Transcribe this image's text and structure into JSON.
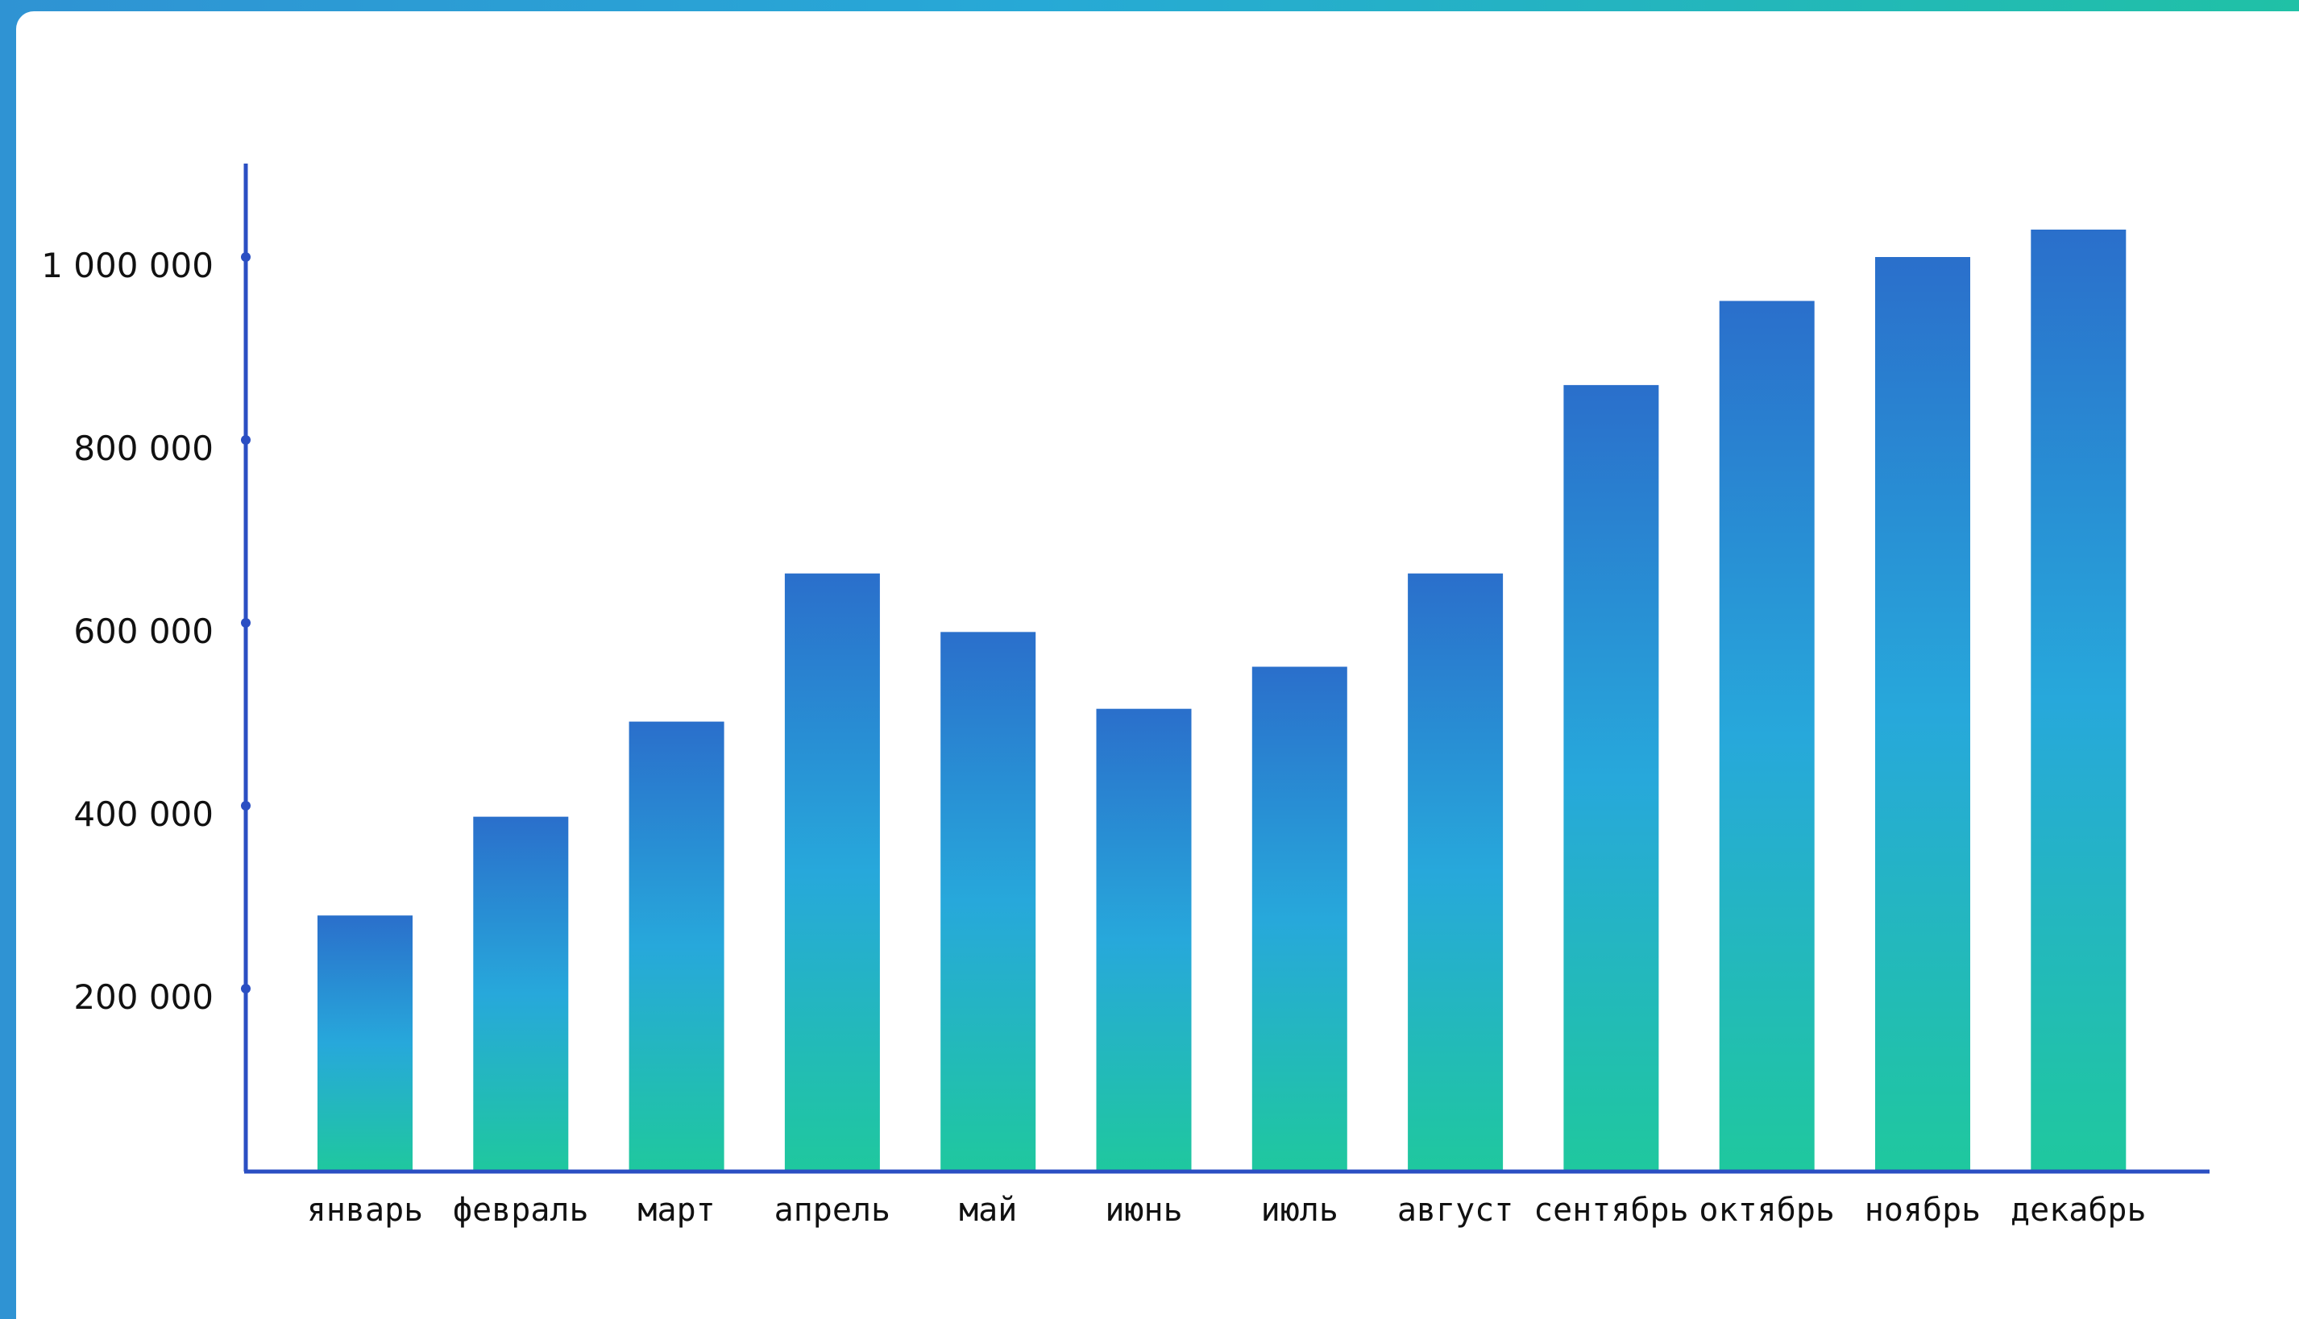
{
  "chart_data": {
    "type": "bar",
    "title": "",
    "xlabel": "",
    "ylabel": "",
    "ylim": [
      0,
      1140000
    ],
    "yticks": [
      200000,
      400000,
      600000,
      800000,
      1000000
    ],
    "ytick_labels": [
      "200 000",
      "400 000",
      "600 000",
      "800 000",
      "1 000 000"
    ],
    "categories": [
      "январь",
      "февраль",
      "март",
      "апрель",
      "май",
      "июнь",
      "июль",
      "август",
      "сентябрь",
      "октябрь",
      "ноябрь",
      "декабрь"
    ],
    "values": [
      280000,
      388000,
      492000,
      654000,
      590000,
      506000,
      552000,
      654000,
      860000,
      952000,
      1000000,
      1030000
    ],
    "grid": false,
    "legend": "none",
    "colors": {
      "bar_top": "#2a6fcb",
      "bar_mid": "#27a8db",
      "bar_bottom": "#1fc89e",
      "axis": "#2b4fc3",
      "frame_left": "#2f93d3",
      "frame_right": "#20c1a6"
    }
  }
}
